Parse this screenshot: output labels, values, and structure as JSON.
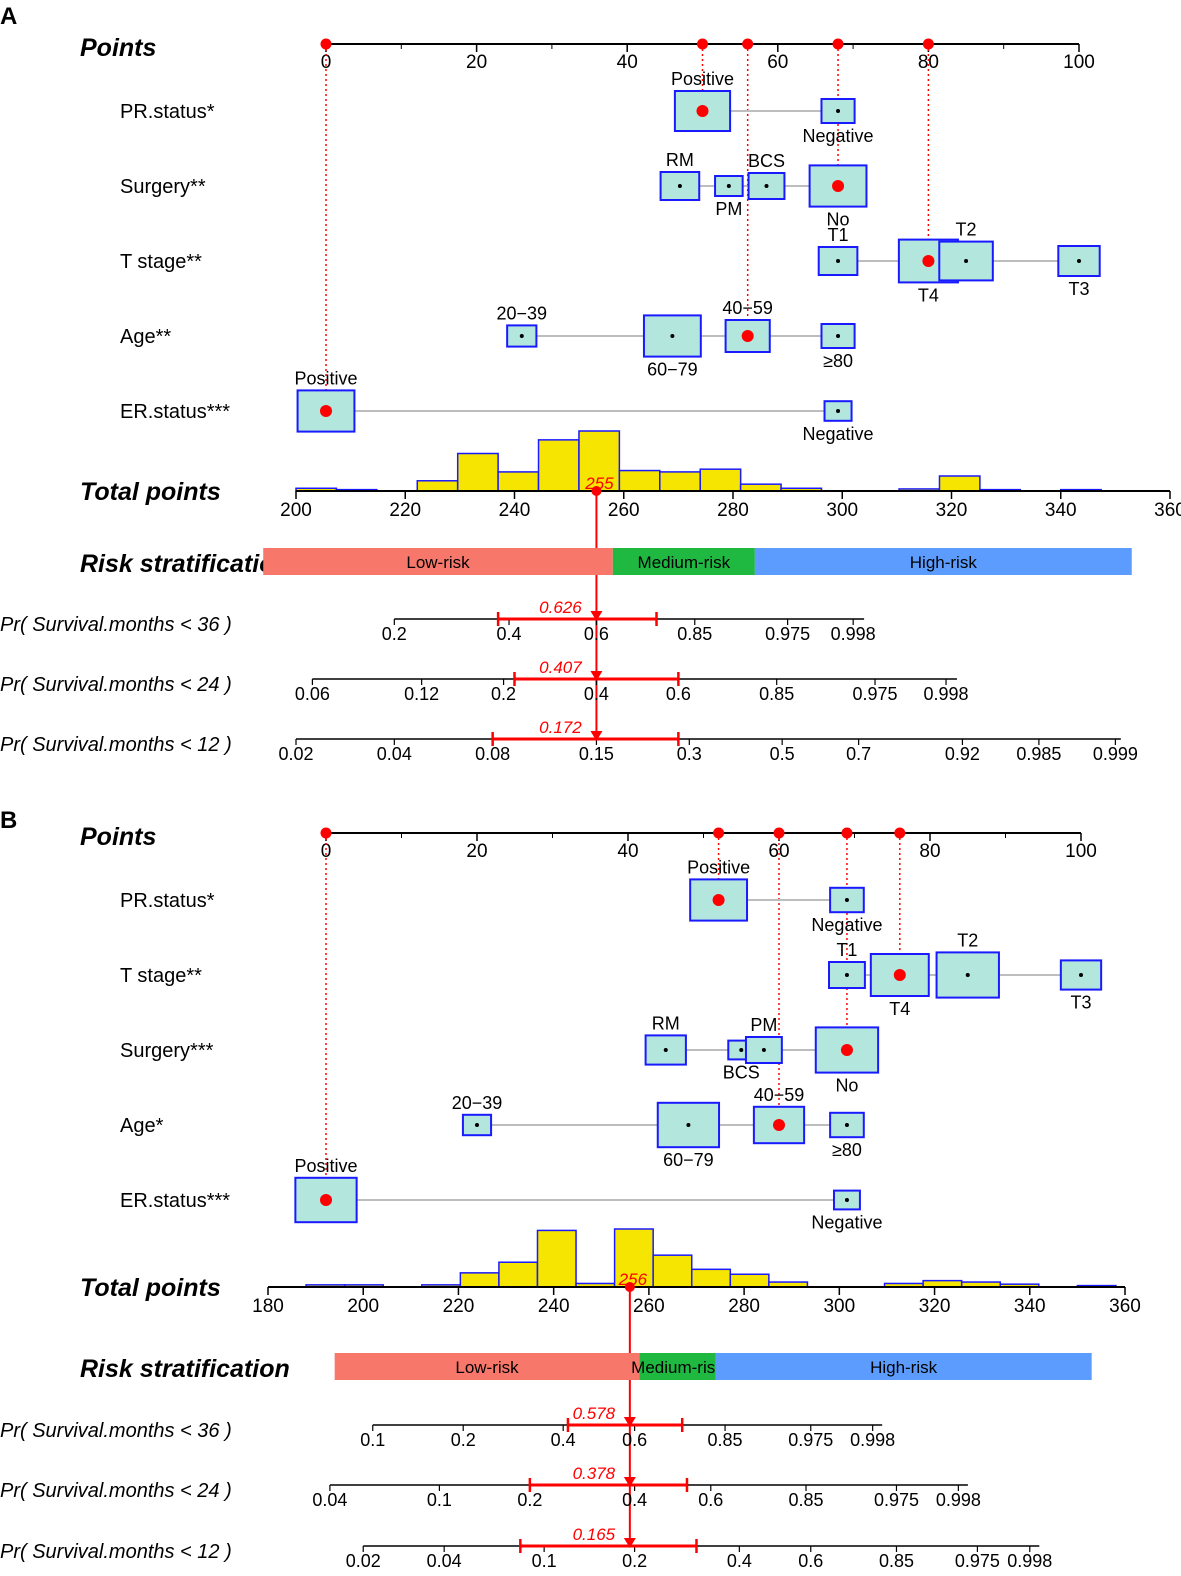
{
  "colors": {
    "box_fill": "#b3e6dc",
    "box_stroke": "#1a1aff",
    "hist_fill": "#f5e500",
    "marker": "#ff0000",
    "low_risk": "#f7786b",
    "medium_risk": "#1fb840",
    "high_risk": "#5c9cff",
    "connector": "#bdbdbd"
  },
  "chart_data": [
    {
      "type": "nomogram",
      "panel": "A",
      "points_title": "Points",
      "points_ticks": [
        "0",
        "20",
        "40",
        "60",
        "80",
        "100"
      ],
      "points_axis": [
        0,
        100
      ],
      "selected_points": [
        0,
        50,
        56,
        68,
        80
      ],
      "variables": [
        {
          "name": "PR.status*",
          "levels": [
            {
              "label": "Positive",
              "points": 50,
              "size": 0.75,
              "selected": true
            },
            {
              "label": "Negative",
              "points": 68,
              "size": 0.35
            }
          ]
        },
        {
          "name": "Surgery**",
          "levels": [
            {
              "label": "RM",
              "points": 47,
              "size": 0.45
            },
            {
              "label": "PM",
              "points": 53.5,
              "size": 0.25
            },
            {
              "label": "BCS",
              "points": 58.5,
              "size": 0.4
            },
            {
              "label": "No",
              "points": 68,
              "size": 0.78,
              "selected": true
            }
          ]
        },
        {
          "name": "T stage**",
          "levels": [
            {
              "label": "T1",
              "points": 68,
              "size": 0.45
            },
            {
              "label": "T4",
              "points": 80,
              "size": 0.82,
              "selected": true
            },
            {
              "label": "T2",
              "points": 85,
              "size": 0.72
            },
            {
              "label": "T3",
              "points": 100,
              "size": 0.5
            }
          ]
        },
        {
          "name": "Age**",
          "levels": [
            {
              "label": "20−39",
              "points": 26,
              "size": 0.28
            },
            {
              "label": "60−79",
              "points": 46,
              "size": 0.78
            },
            {
              "label": "40−59",
              "points": 56,
              "size": 0.55,
              "selected": true
            },
            {
              "label": "≥80",
              "points": 68,
              "size": 0.35
            }
          ]
        },
        {
          "name": "ER.status***",
          "levels": [
            {
              "label": "Positive",
              "points": 0,
              "size": 0.78,
              "selected": true
            },
            {
              "label": "Negative",
              "points": 68,
              "size": 0.24
            }
          ]
        }
      ],
      "total_title": "Total points",
      "total_ticks": [
        "200",
        "220",
        "240",
        "260",
        "280",
        "300",
        "320",
        "340",
        "360"
      ],
      "total_axis": [
        200,
        360
      ],
      "histogram": {
        "bin_width": 7.4,
        "bins": [
          {
            "start": 200,
            "count": 0.04
          },
          {
            "start": 207.4,
            "count": 0.02
          },
          {
            "start": 222.2,
            "count": 0.15
          },
          {
            "start": 229.6,
            "count": 0.55
          },
          {
            "start": 237,
            "count": 0.28
          },
          {
            "start": 244.4,
            "count": 0.75
          },
          {
            "start": 251.8,
            "count": 0.88
          },
          {
            "start": 259.2,
            "count": 0.3
          },
          {
            "start": 266.6,
            "count": 0.28
          },
          {
            "start": 274,
            "count": 0.32
          },
          {
            "start": 281.4,
            "count": 0.1
          },
          {
            "start": 288.8,
            "count": 0.04
          },
          {
            "start": 310.4,
            "count": 0.03
          },
          {
            "start": 317.8,
            "count": 0.22
          },
          {
            "start": 325.2,
            "count": 0.02
          },
          {
            "start": 340,
            "count": 0.02
          }
        ]
      },
      "total_value": 255,
      "total_value_label": "255",
      "risk_title": "Risk stratification",
      "risk_bands": [
        {
          "label": "Low-risk",
          "from": 194,
          "to": 258,
          "color": "#f7786b"
        },
        {
          "label": "Medium-risk",
          "from": 258,
          "to": 284,
          "color": "#1fb840"
        },
        {
          "label": "High-risk",
          "from": 284,
          "to": 353,
          "color": "#5c9cff"
        }
      ],
      "probability_axes": [
        {
          "label": "Pr( Survival.months < 36 )",
          "ticks": [
            {
              "label": "0.2",
              "at": 218
            },
            {
              "label": "0.4",
              "at": 239
            },
            {
              "label": "0.6",
              "at": 255
            },
            {
              "label": "0.85",
              "at": 273
            },
            {
              "label": "0.975",
              "at": 290
            },
            {
              "label": "0.998",
              "at": 302
            }
          ],
          "axis_from": 218,
          "axis_to": 304,
          "value": 0.626,
          "value_label": "0.626",
          "ci_from": 237,
          "ci_to": 266
        },
        {
          "label": "Pr( Survival.months < 24 )",
          "ticks": [
            {
              "label": "0.06",
              "at": 203
            },
            {
              "label": "0.12",
              "at": 223
            },
            {
              "label": "0.2",
              "at": 238
            },
            {
              "label": "0.4",
              "at": 255
            },
            {
              "label": "0.6",
              "at": 270
            },
            {
              "label": "0.85",
              "at": 288
            },
            {
              "label": "0.975",
              "at": 306
            },
            {
              "label": "0.998",
              "at": 319
            }
          ],
          "axis_from": 203,
          "axis_to": 321,
          "value": 0.407,
          "value_label": "0.407",
          "ci_from": 240,
          "ci_to": 270
        },
        {
          "label": "Pr( Survival.months < 12 )",
          "ticks": [
            {
              "label": "0.02",
              "at": 200
            },
            {
              "label": "0.04",
              "at": 218
            },
            {
              "label": "0.08",
              "at": 236
            },
            {
              "label": "0.15",
              "at": 255
            },
            {
              "label": "0.3",
              "at": 272
            },
            {
              "label": "0.5",
              "at": 289
            },
            {
              "label": "0.7",
              "at": 303
            },
            {
              "label": "0.92",
              "at": 322
            },
            {
              "label": "0.985",
              "at": 336
            },
            {
              "label": "0.999",
              "at": 350
            }
          ],
          "axis_from": 200,
          "axis_to": 351,
          "value": 0.172,
          "value_label": "0.172",
          "ci_from": 236,
          "ci_to": 270
        }
      ]
    },
    {
      "type": "nomogram",
      "panel": "B",
      "points_title": "Points",
      "points_ticks": [
        "0",
        "20",
        "40",
        "60",
        "80",
        "100"
      ],
      "points_axis": [
        0,
        100
      ],
      "selected_points": [
        0,
        52,
        60,
        69,
        76
      ],
      "variables": [
        {
          "name": "PR.status*",
          "levels": [
            {
              "label": "Positive",
              "points": 52,
              "size": 0.78,
              "selected": true
            },
            {
              "label": "Negative",
              "points": 69,
              "size": 0.36
            }
          ]
        },
        {
          "name": "T stage**",
          "levels": [
            {
              "label": "T1",
              "points": 69,
              "size": 0.4
            },
            {
              "label": "T4",
              "points": 76,
              "size": 0.8,
              "selected": true
            },
            {
              "label": "T2",
              "points": 85,
              "size": 0.88
            },
            {
              "label": "T3",
              "points": 100,
              "size": 0.48
            }
          ]
        },
        {
          "name": "Surgery***",
          "levels": [
            {
              "label": "RM",
              "points": 45,
              "size": 0.48
            },
            {
              "label": "BCS",
              "points": 55,
              "size": 0.22
            },
            {
              "label": "PM",
              "points": 58,
              "size": 0.4
            },
            {
              "label": "No",
              "points": 69,
              "size": 0.88,
              "selected": true
            }
          ]
        },
        {
          "name": "Age*",
          "levels": [
            {
              "label": "20−39",
              "points": 20,
              "size": 0.26
            },
            {
              "label": "60−79",
              "points": 48,
              "size": 0.86
            },
            {
              "label": "40−59",
              "points": 60,
              "size": 0.66,
              "selected": true
            },
            {
              "label": "≥80",
              "points": 69,
              "size": 0.36
            }
          ]
        },
        {
          "name": "ER.status***",
          "levels": [
            {
              "label": "Positive",
              "points": 0,
              "size": 0.86,
              "selected": true
            },
            {
              "label": "Negative",
              "points": 69,
              "size": 0.22
            }
          ]
        }
      ],
      "total_title": "Total points",
      "total_ticks": [
        "180",
        "200",
        "220",
        "240",
        "260",
        "280",
        "300",
        "320",
        "340",
        "360"
      ],
      "total_axis": [
        180,
        360
      ],
      "histogram": {
        "bin_width": 8.1,
        "bins": [
          {
            "start": 188,
            "count": 0.03
          },
          {
            "start": 196.1,
            "count": 0.03
          },
          {
            "start": 212.3,
            "count": 0.03
          },
          {
            "start": 220.4,
            "count": 0.2
          },
          {
            "start": 228.5,
            "count": 0.35
          },
          {
            "start": 236.6,
            "count": 0.8
          },
          {
            "start": 244.7,
            "count": 0.05
          },
          {
            "start": 252.8,
            "count": 0.82
          },
          {
            "start": 260.9,
            "count": 0.45
          },
          {
            "start": 269,
            "count": 0.25
          },
          {
            "start": 277.1,
            "count": 0.18
          },
          {
            "start": 285.2,
            "count": 0.07
          },
          {
            "start": 309.5,
            "count": 0.05
          },
          {
            "start": 317.6,
            "count": 0.09
          },
          {
            "start": 325.7,
            "count": 0.07
          },
          {
            "start": 333.8,
            "count": 0.04
          },
          {
            "start": 350,
            "count": 0.02
          }
        ]
      },
      "total_value": 256,
      "total_value_label": "256",
      "risk_title": "Risk stratification",
      "risk_bands": [
        {
          "label": "Low-risk",
          "from": 194,
          "to": 258,
          "color": "#f7786b"
        },
        {
          "label": "Medium-risk",
          "from": 258,
          "to": 274,
          "color": "#1fb840"
        },
        {
          "label": "High-risk",
          "from": 274,
          "to": 353,
          "color": "#5c9cff"
        }
      ],
      "probability_axes": [
        {
          "label": "Pr( Survival.months < 36 )",
          "ticks": [
            {
              "label": "0.1",
              "at": 202
            },
            {
              "label": "0.2",
              "at": 221
            },
            {
              "label": "0.4",
              "at": 242
            },
            {
              "label": "0.6",
              "at": 257
            },
            {
              "label": "0.85",
              "at": 276
            },
            {
              "label": "0.975",
              "at": 294
            },
            {
              "label": "0.998",
              "at": 307
            }
          ],
          "axis_from": 202,
          "axis_to": 309,
          "value": 0.578,
          "value_label": "0.578",
          "ci_from": 243,
          "ci_to": 267
        },
        {
          "label": "Pr( Survival.months < 24 )",
          "ticks": [
            {
              "label": "0.04",
              "at": 193
            },
            {
              "label": "0.1",
              "at": 216
            },
            {
              "label": "0.2",
              "at": 235
            },
            {
              "label": "0.4",
              "at": 257
            },
            {
              "label": "0.6",
              "at": 273
            },
            {
              "label": "0.85",
              "at": 293
            },
            {
              "label": "0.975",
              "at": 312
            },
            {
              "label": "0.998",
              "at": 325
            }
          ],
          "axis_from": 193,
          "axis_to": 327,
          "value": 0.378,
          "value_label": "0.378",
          "ci_from": 235,
          "ci_to": 268
        },
        {
          "label": "Pr( Survival.months < 12 )",
          "ticks": [
            {
              "label": "0.02",
              "at": 200
            },
            {
              "label": "0.04",
              "at": 217
            },
            {
              "label": "0.1",
              "at": 238
            },
            {
              "label": "0.2",
              "at": 257
            },
            {
              "label": "0.4",
              "at": 279
            },
            {
              "label": "0.6",
              "at": 294
            },
            {
              "label": "0.85",
              "at": 312
            },
            {
              "label": "0.975",
              "at": 329
            },
            {
              "label": "0.998",
              "at": 340
            }
          ],
          "axis_from": 200,
          "axis_to": 342,
          "value": 0.165,
          "value_label": "0.165",
          "ci_from": 233,
          "ci_to": 270
        }
      ]
    }
  ]
}
